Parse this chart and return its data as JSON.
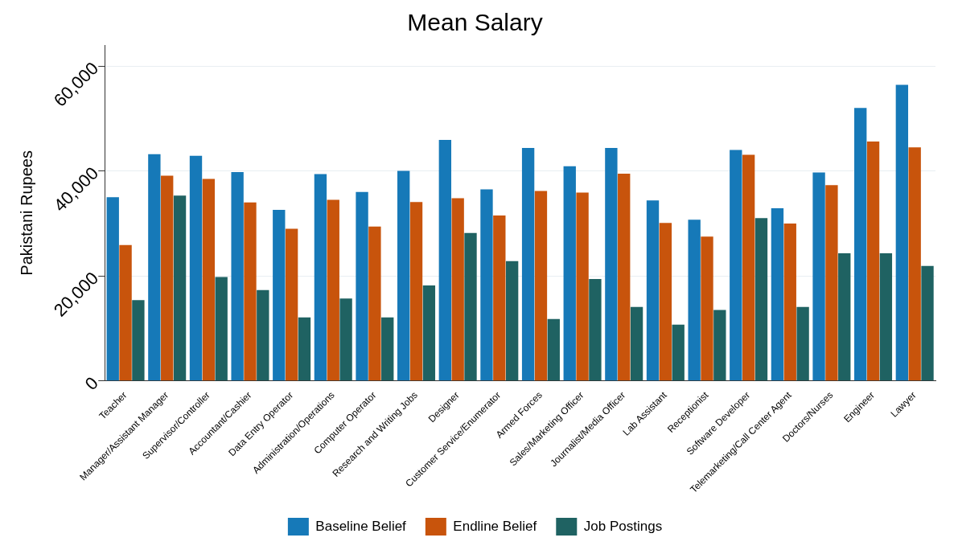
{
  "chart_data": {
    "type": "bar",
    "title": "Mean Salary",
    "ylabel": "Pakistani Rupees",
    "categories": [
      "Teacher",
      "Manager/Assistant Manager",
      "Supervisor/Controller",
      "Accountant/Cashier",
      "Data Entry Operator",
      "Administration/Operations",
      "Computer Operator",
      "Research and Writing Jobs",
      "Designer",
      "Customer Service/Enumerator",
      "Armed Forces",
      "Sales/Marketing Officer",
      "Journalist/Media Officer",
      "Lab Assistant",
      "Receptionist",
      "Software Developer",
      "Telemarketing/Call Center Agent",
      "Doctors/Nurses",
      "Engineer",
      "Lawyer"
    ],
    "series": [
      {
        "name": "Baseline Belief",
        "color": "#1679b8",
        "values": [
          35000,
          43200,
          42900,
          39800,
          32600,
          39400,
          36000,
          40000,
          45900,
          36500,
          44400,
          40900,
          44400,
          34400,
          30700,
          44000,
          32900,
          39700,
          52000,
          56400
        ]
      },
      {
        "name": "Endline Belief",
        "color": "#c8540c",
        "values": [
          25900,
          39100,
          38500,
          34000,
          29000,
          34500,
          29400,
          34100,
          34800,
          31500,
          36200,
          35900,
          39500,
          30100,
          27500,
          43100,
          30000,
          37300,
          45600,
          44500
        ]
      },
      {
        "name": "Job Postings",
        "color": "#1f6262",
        "values": [
          15400,
          35300,
          19800,
          17300,
          12100,
          15700,
          12100,
          18200,
          28200,
          22800,
          11800,
          19400,
          14100,
          10700,
          13500,
          31000,
          14100,
          24300,
          24300,
          21900
        ]
      }
    ],
    "ylim": [
      0,
      64000
    ],
    "yticks": [
      {
        "value": 0,
        "label": "0"
      },
      {
        "value": 20000,
        "label": "20,000"
      },
      {
        "value": 40000,
        "label": "40,000"
      },
      {
        "value": 60000,
        "label": "60,000"
      }
    ],
    "grid": "y",
    "legend": "bottom"
  }
}
